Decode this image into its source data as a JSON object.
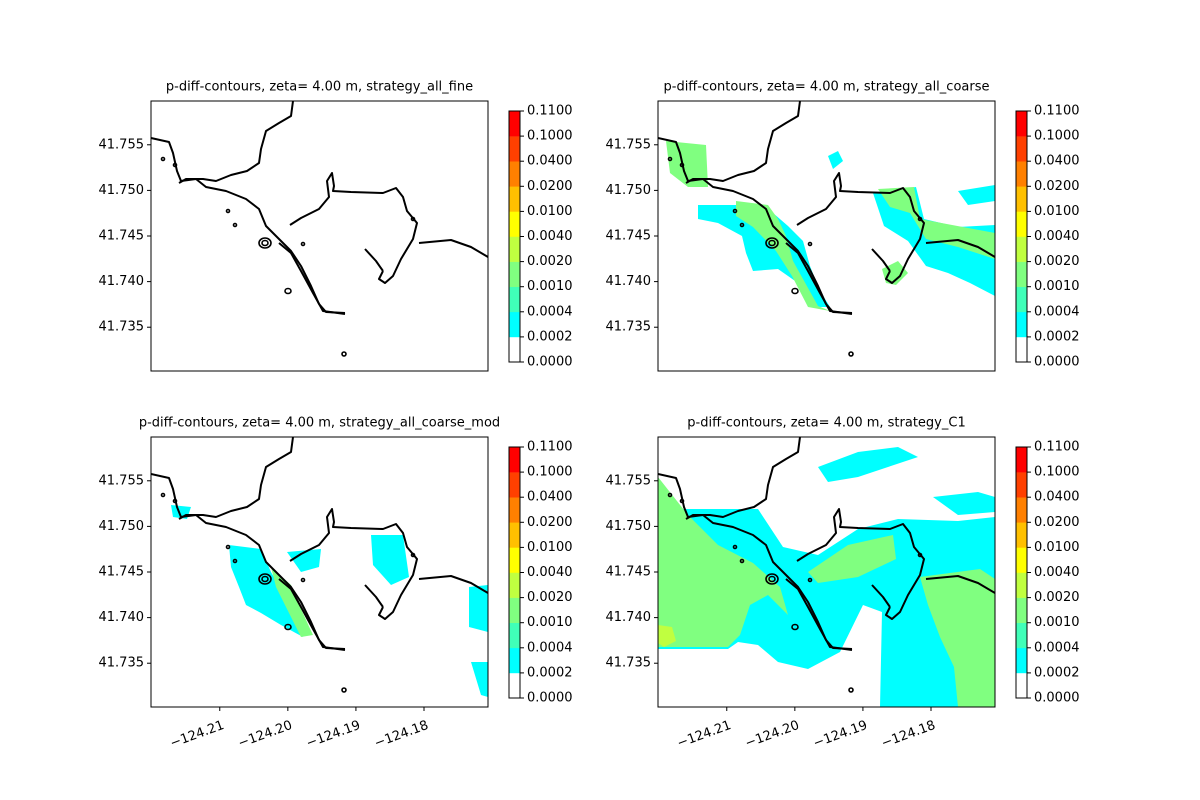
{
  "chart_data": [
    {
      "type": "contour",
      "title": "p-diff-contours, zeta= 4.00 m, strategy_all_fine",
      "xlim": [
        -124.2201,
        -124.1706
      ],
      "ylim": [
        41.7302,
        41.7598
      ],
      "yticks": [
        41.735,
        {
          "value": 41.74,
          "label": "41.740"
        },
        41.745,
        {
          "value": 41.75,
          "label": "41.750"
        },
        41.755
      ],
      "levels": [
        {
          "value": 0,
          "label": "0.0000"
        },
        {
          "value": 0.0002,
          "label": "0.0002"
        },
        {
          "value": 0.0004,
          "label": "0.0004"
        },
        {
          "value": 0.001,
          "label": "0.0010"
        },
        {
          "value": 0.002,
          "label": "0.0020"
        },
        {
          "value": 0.004,
          "label": "0.0040"
        },
        {
          "value": 0.01,
          "label": "0.0100"
        },
        {
          "value": 0.02,
          "label": "0.0200"
        },
        {
          "value": 0.04,
          "label": "0.0400"
        },
        {
          "value": 0.1,
          "label": "0.1000"
        },
        {
          "value": 0.11,
          "label": "0.1100"
        }
      ],
      "colors": [
        "#ffffff",
        "#00ffff",
        "#40ffb8",
        "#80ff80",
        "#c0ff40",
        "#ffff00",
        "#ffc000",
        "#ff8000",
        "#ff4000",
        "#ff0000"
      ]
    },
    {
      "type": "contour",
      "title": "p-diff-contours, zeta= 4.00 m, strategy_all_coarse",
      "xlim": [
        -124.2201,
        -124.1706
      ],
      "ylim": [
        41.7302,
        41.7598
      ],
      "yticks": [
        41.735,
        {
          "value": 41.74,
          "label": "41.740"
        },
        41.745,
        {
          "value": 41.75,
          "label": "41.750"
        },
        41.755
      ],
      "levels": [
        {
          "value": 0,
          "label": "0.0000"
        },
        {
          "value": 0.0002,
          "label": "0.0002"
        },
        {
          "value": 0.0004,
          "label": "0.0004"
        },
        {
          "value": 0.001,
          "label": "0.0010"
        },
        {
          "value": 0.002,
          "label": "0.0020"
        },
        {
          "value": 0.004,
          "label": "0.0040"
        },
        {
          "value": 0.01,
          "label": "0.0100"
        },
        {
          "value": 0.02,
          "label": "0.0200"
        },
        {
          "value": 0.04,
          "label": "0.0400"
        },
        {
          "value": 0.1,
          "label": "0.1000"
        },
        {
          "value": 0.11,
          "label": "0.1100"
        }
      ],
      "colors": [
        "#ffffff",
        "#00ffff",
        "#40ffb8",
        "#80ff80",
        "#c0ff40",
        "#ffff00",
        "#ffc000",
        "#ff8000",
        "#ff4000",
        "#ff0000"
      ]
    },
    {
      "type": "contour",
      "title": "p-diff-contours, zeta= 4.00 m, strategy_all_coarse_mod",
      "xlim": [
        -124.2201,
        -124.1706
      ],
      "ylim": [
        41.7302,
        41.7598
      ],
      "xticks": [
        {
          "value": -124.21,
          "label": "−124.21"
        },
        {
          "value": -124.2,
          "label": "−124.20"
        },
        {
          "value": -124.19,
          "label": "−124.19"
        },
        {
          "value": -124.18,
          "label": "−124.18"
        }
      ],
      "yticks": [
        41.735,
        {
          "value": 41.74,
          "label": "41.740"
        },
        41.745,
        {
          "value": 41.75,
          "label": "41.750"
        },
        41.755
      ],
      "levels": [
        {
          "value": 0,
          "label": "0.0000"
        },
        {
          "value": 0.0002,
          "label": "0.0002"
        },
        {
          "value": 0.0004,
          "label": "0.0004"
        },
        {
          "value": 0.001,
          "label": "0.0010"
        },
        {
          "value": 0.002,
          "label": "0.0020"
        },
        {
          "value": 0.004,
          "label": "0.0040"
        },
        {
          "value": 0.01,
          "label": "0.0100"
        },
        {
          "value": 0.02,
          "label": "0.0200"
        },
        {
          "value": 0.04,
          "label": "0.0400"
        },
        {
          "value": 0.1,
          "label": "0.1000"
        },
        {
          "value": 0.11,
          "label": "0.1100"
        }
      ],
      "colors": [
        "#ffffff",
        "#00ffff",
        "#40ffb8",
        "#80ff80",
        "#c0ff40",
        "#ffff00",
        "#ffc000",
        "#ff8000",
        "#ff4000",
        "#ff0000"
      ]
    },
    {
      "type": "contour",
      "title": "p-diff-contours, zeta= 4.00 m, strategy_C1",
      "xlim": [
        -124.2201,
        -124.1706
      ],
      "ylim": [
        41.7302,
        41.7598
      ],
      "xticks": [
        {
          "value": -124.21,
          "label": "−124.21"
        },
        {
          "value": -124.2,
          "label": "−124.20"
        },
        {
          "value": -124.19,
          "label": "−124.19"
        },
        {
          "value": -124.18,
          "label": "−124.18"
        }
      ],
      "yticks": [
        41.735,
        {
          "value": 41.74,
          "label": "41.740"
        },
        41.745,
        {
          "value": 41.75,
          "label": "41.750"
        },
        41.755
      ],
      "levels": [
        {
          "value": 0,
          "label": "0.0000"
        },
        {
          "value": 0.0002,
          "label": "0.0002"
        },
        {
          "value": 0.0004,
          "label": "0.0004"
        },
        {
          "value": 0.001,
          "label": "0.0010"
        },
        {
          "value": 0.002,
          "label": "0.0020"
        },
        {
          "value": 0.004,
          "label": "0.0040"
        },
        {
          "value": 0.01,
          "label": "0.0100"
        },
        {
          "value": 0.02,
          "label": "0.0200"
        },
        {
          "value": 0.04,
          "label": "0.0400"
        },
        {
          "value": 0.1,
          "label": "0.1000"
        },
        {
          "value": 0.11,
          "label": "0.1100"
        }
      ],
      "colors": [
        "#ffffff",
        "#00ffff",
        "#40ffb8",
        "#80ff80",
        "#c0ff40",
        "#ffff00",
        "#ffc000",
        "#ff8000",
        "#ff4000",
        "#ff0000"
      ]
    }
  ]
}
